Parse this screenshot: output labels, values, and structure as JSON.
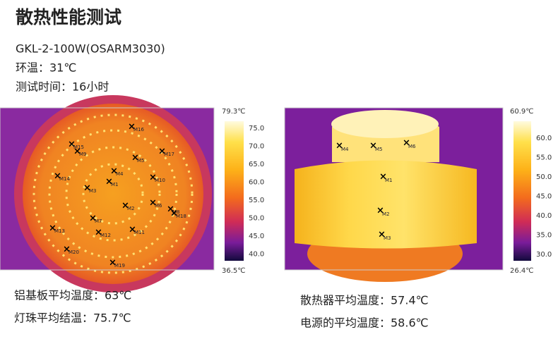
{
  "header": {
    "title": "散热性能测试",
    "model": "GKL-2-100W(OSARM3030)",
    "ambient": "环温：31℃",
    "duration": "测试时间：16小时"
  },
  "left_image": {
    "max": "79.3℃",
    "min": "36.5℃",
    "scale": [
      "75.0",
      "70.0",
      "65.0",
      "60.0",
      "55.0",
      "50.0",
      "45.0",
      "40.0"
    ],
    "markers": [
      "M1",
      "M2",
      "M3",
      "M4",
      "M5",
      "M6",
      "M7",
      "M8",
      "M9",
      "M10",
      "M11",
      "M12",
      "M13",
      "M14",
      "M15",
      "M16",
      "M17",
      "M18",
      "M19",
      "M20"
    ]
  },
  "right_image": {
    "max": "60.9℃",
    "min": "26.4℃",
    "scale": [
      "60.0",
      "55.0",
      "50.0",
      "45.0",
      "40.0",
      "35.0",
      "30.0"
    ],
    "markers": [
      "M1",
      "M2",
      "M3",
      "M4",
      "M5",
      "M6"
    ]
  },
  "left_captions": [
    "铝基板平均温度：63℃",
    "灯珠平均结温：75.7℃"
  ],
  "right_captions": [
    "散热器平均温度：57.4℃",
    "电源的平均温度：58.6℃"
  ]
}
